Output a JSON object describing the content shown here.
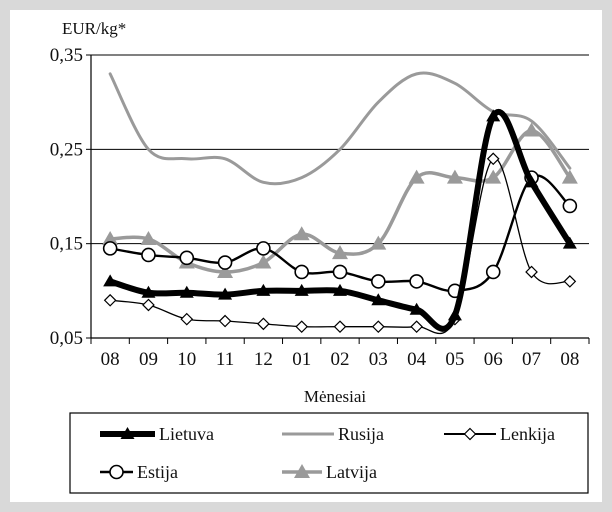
{
  "chart_data": {
    "type": "line",
    "ylabel": "EUR/kg*",
    "xlabel": "Mėnesiai",
    "ylim": [
      0.05,
      0.35
    ],
    "y_ticks": [
      "0,05",
      "0,15",
      "0,25",
      "0,35"
    ],
    "y_tick_values": [
      0.05,
      0.15,
      0.25,
      0.35
    ],
    "categories": [
      "08",
      "09",
      "10",
      "11",
      "12",
      "01",
      "02",
      "03",
      "04",
      "05",
      "06",
      "07",
      "08"
    ],
    "grid": "horizontal",
    "legend_position": "bottom",
    "series": [
      {
        "name": "Lietuva",
        "color": "#000000",
        "style": "bold",
        "marker": "triangle-black",
        "values": [
          0.11,
          0.098,
          0.098,
          0.096,
          0.1,
          0.1,
          0.1,
          0.09,
          0.08,
          0.074,
          0.285,
          0.215,
          0.15
        ]
      },
      {
        "name": "Rusija",
        "color": "#9a9a9a",
        "style": "plain-gray",
        "marker": "none",
        "values": [
          0.33,
          0.25,
          0.24,
          0.24,
          0.215,
          0.22,
          0.25,
          0.3,
          0.33,
          0.32,
          0.29,
          0.28,
          0.23
        ]
      },
      {
        "name": "Lenkija",
        "color": "#000000",
        "style": "thin",
        "marker": "diamond-open",
        "values": [
          0.09,
          0.085,
          0.07,
          0.068,
          0.065,
          0.062,
          0.062,
          0.062,
          0.062,
          0.07,
          0.24,
          0.12,
          0.11
        ]
      },
      {
        "name": "Estija",
        "color": "#000000",
        "style": "medium",
        "marker": "circle-open",
        "values": [
          0.145,
          0.138,
          0.135,
          0.13,
          0.145,
          0.12,
          0.12,
          0.11,
          0.11,
          0.1,
          0.12,
          0.22,
          0.19
        ]
      },
      {
        "name": "Latvija",
        "color": "#9a9a9a",
        "style": "gray-thick",
        "marker": "triangle-gray",
        "values": [
          0.155,
          0.155,
          0.13,
          0.12,
          0.13,
          0.16,
          0.14,
          0.15,
          0.22,
          0.22,
          0.22,
          0.27,
          0.22
        ]
      }
    ]
  }
}
